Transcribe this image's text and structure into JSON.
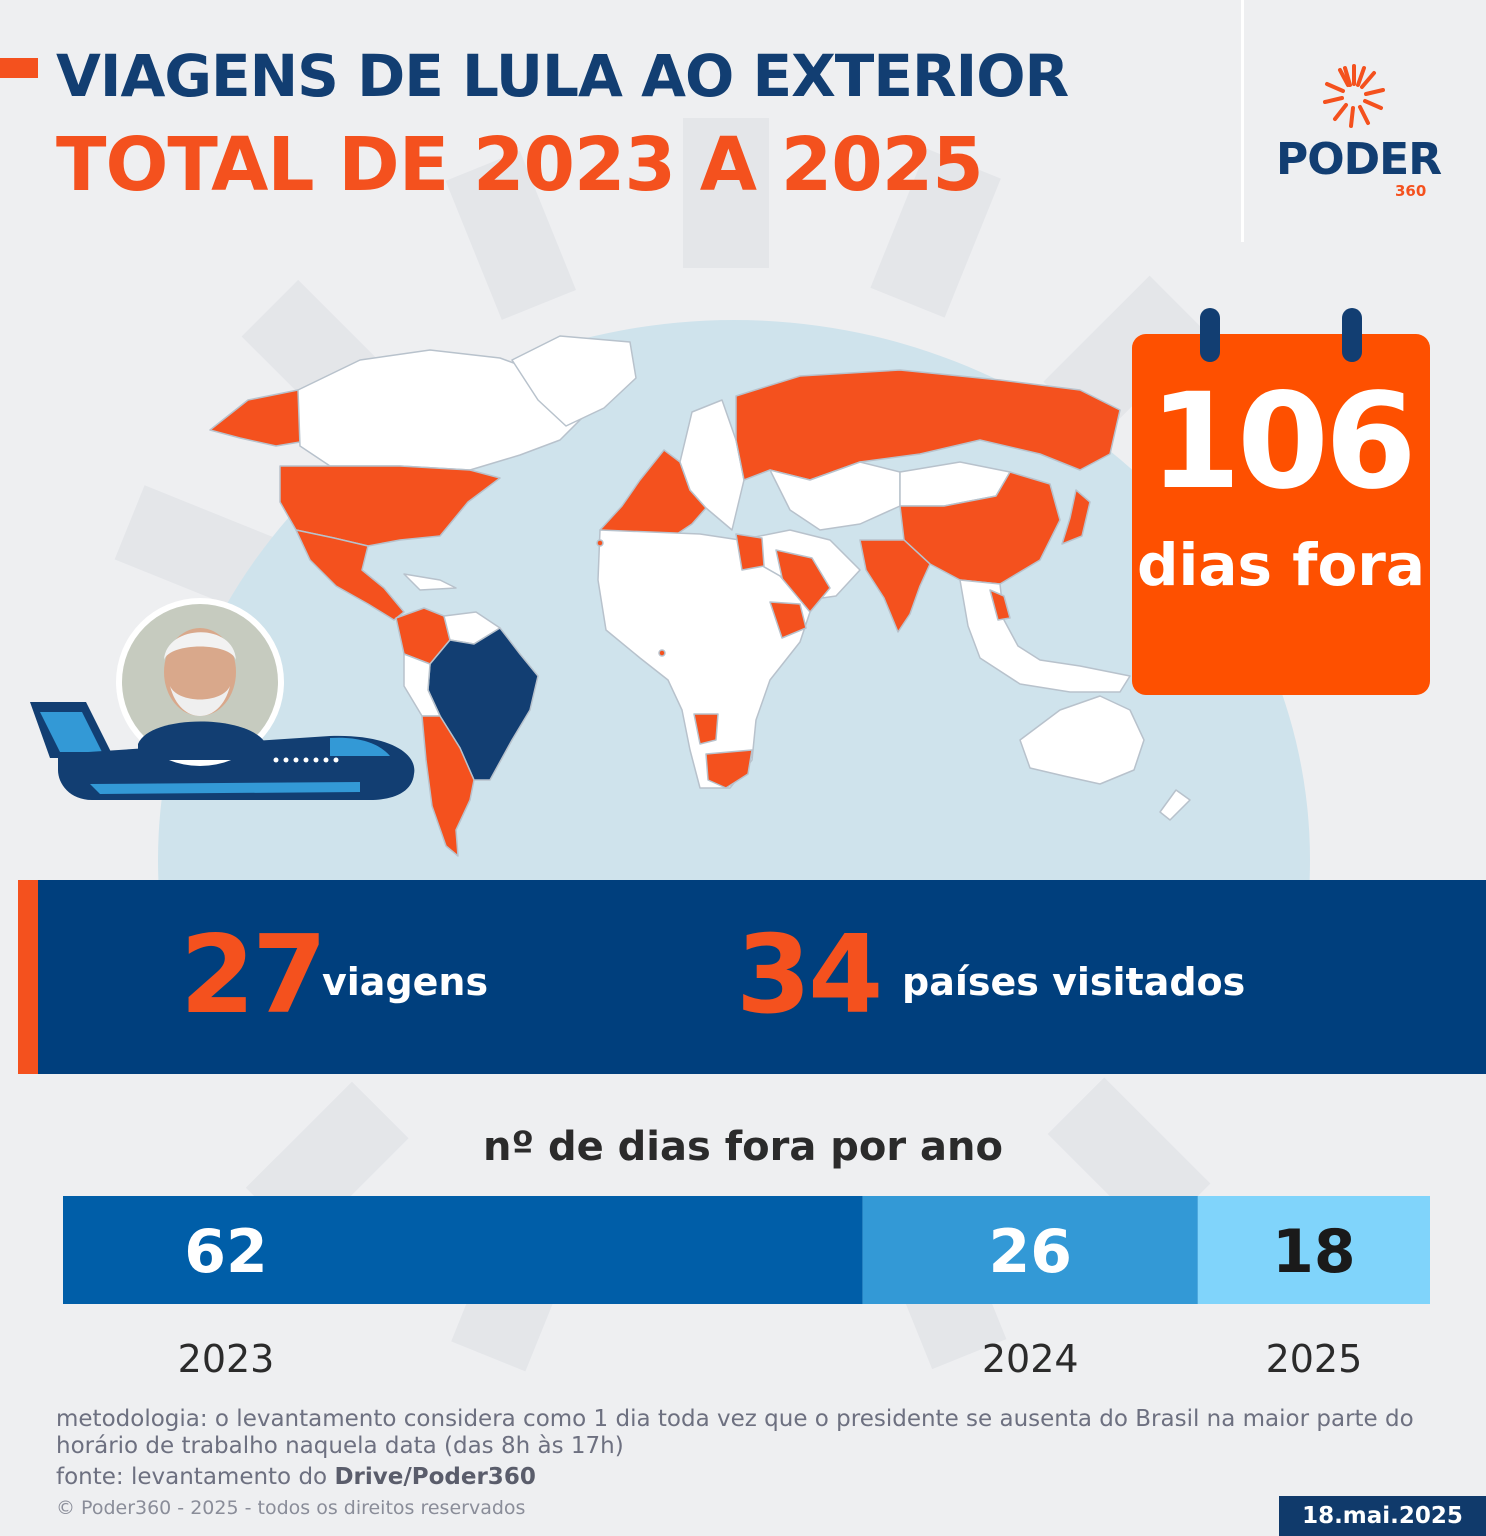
{
  "header": {
    "title": "VIAGENS DE LULA AO EXTERIOR",
    "subtitle": "TOTAL DE 2023 A 2025"
  },
  "brand": {
    "name": "PODER",
    "number": "360",
    "colors": {
      "navy": "#123e72",
      "orange": "#f4511e",
      "map_orange": "#fe5000"
    }
  },
  "icons": [
    "sun-rays-logo-icon",
    "airplane-icon",
    "calendar-icon",
    "world-map-icon"
  ],
  "calendar": {
    "number": "106",
    "label": "dias fora"
  },
  "stats": {
    "trips_number": "27",
    "trips_label": "viagens",
    "countries_number": "34",
    "countries_label": "países visitados"
  },
  "chart_data": {
    "type": "bar",
    "orientation": "stacked-horizontal",
    "title": "nº de dias fora por ano",
    "categories": [
      "2023",
      "2024",
      "2025"
    ],
    "values": [
      62,
      26,
      18
    ],
    "total": 106,
    "colors": [
      "#005ea8",
      "#3399d6",
      "#80d4fb"
    ],
    "label_colors": [
      "#ffffff",
      "#ffffff",
      "#1a1a1a"
    ],
    "grid": false,
    "legend": "none"
  },
  "footer": {
    "methodology": "metodologia: o levantamento considera como 1 dia toda vez que o presidente se ausenta do Brasil na maior parte do horário de trabalho naquela data (das 8h às 17h)",
    "source_prefix": "fonte: levantamento do ",
    "source_name": "Drive/Poder360",
    "copyright": "© Poder360 - 2025 - todos os direitos reservados",
    "date": "18.mai.2025"
  }
}
